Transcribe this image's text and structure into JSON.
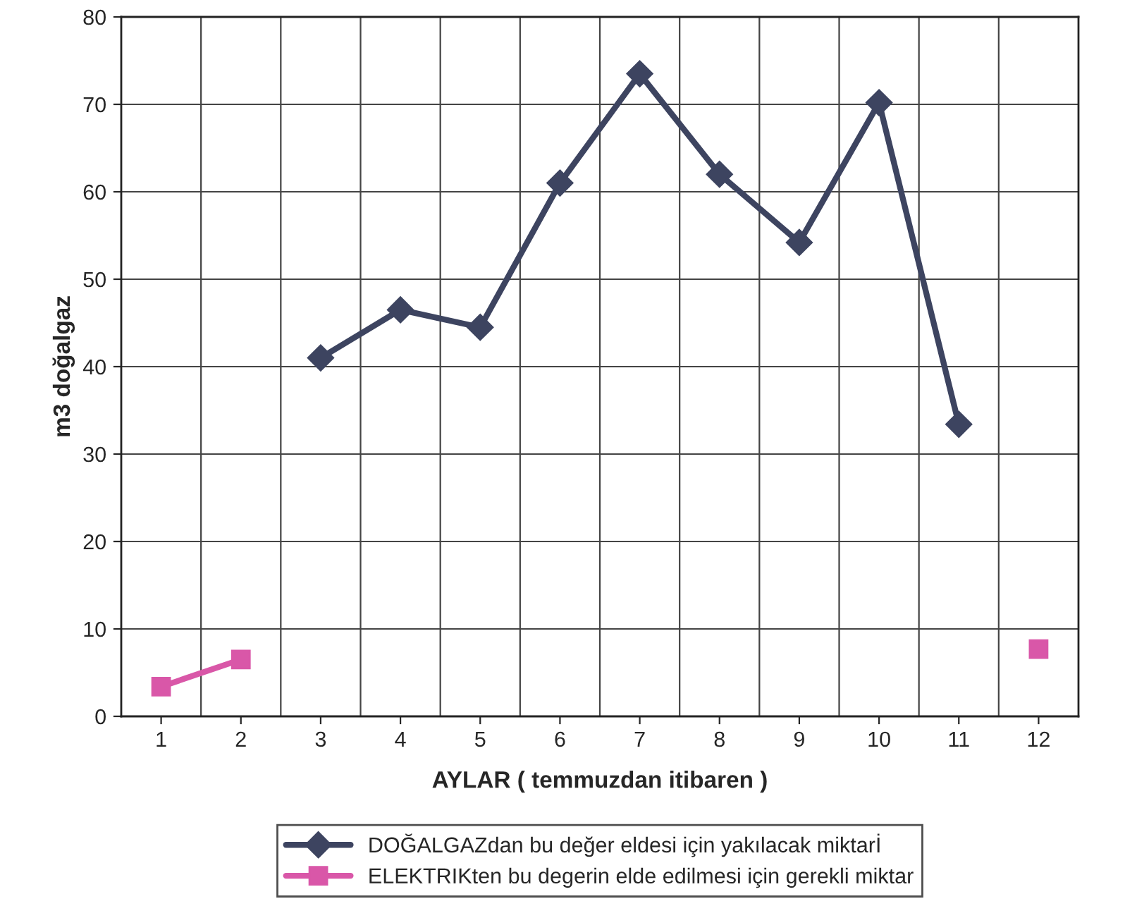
{
  "chart_data": {
    "type": "line",
    "categories": [
      "1",
      "2",
      "3",
      "4",
      "5",
      "6",
      "7",
      "8",
      "9",
      "10",
      "11",
      "12"
    ],
    "xlabel": "AYLAR ( temmuzdan itibaren )",
    "ylabel": "m3 doğalgaz",
    "ylim": [
      0,
      80
    ],
    "yticks": [
      0,
      10,
      20,
      30,
      40,
      50,
      60,
      70,
      80
    ],
    "grid": true,
    "legend": "bottom",
    "series": [
      {
        "name": "DOĞALGAZdan bu değer eldesi için yakılacak miktarİ",
        "color": "#3d4460",
        "marker": "diamond",
        "values": [
          null,
          null,
          41,
          46.5,
          44.5,
          61,
          73.5,
          62,
          54.2,
          70.2,
          33.4,
          null
        ]
      },
      {
        "name": "ELEKTRIKten bu degerin elde edilmesi için gerekli miktar",
        "color": "#d957a8",
        "marker": "square",
        "values": [
          3.4,
          6.5,
          null,
          null,
          null,
          null,
          null,
          null,
          null,
          null,
          null,
          7.7
        ]
      }
    ]
  }
}
